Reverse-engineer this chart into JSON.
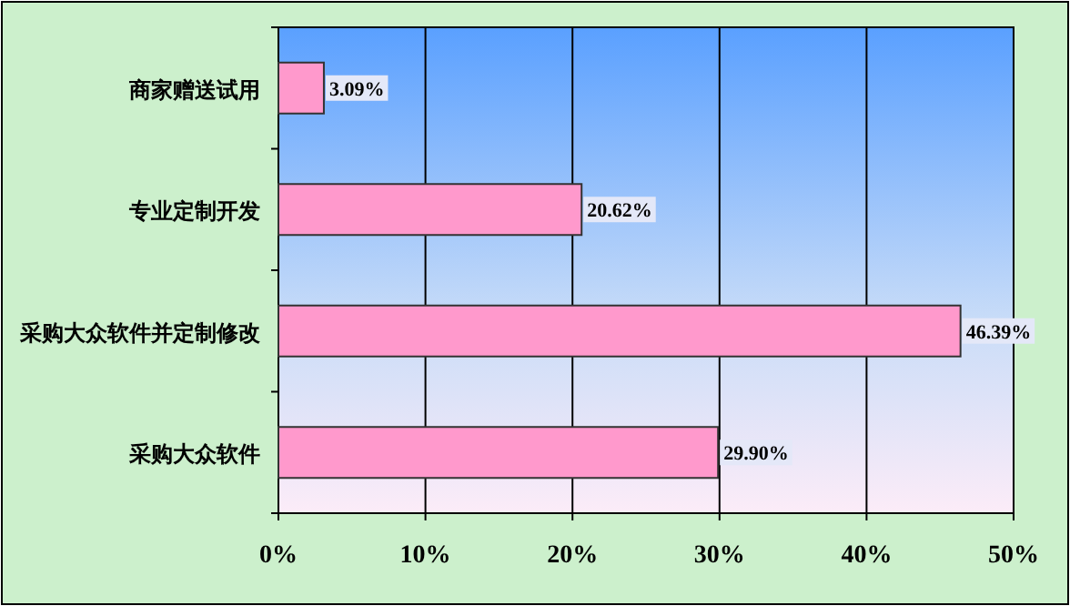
{
  "chart_data": {
    "type": "bar",
    "orientation": "horizontal",
    "categories": [
      "商家赠送试用",
      "专业定制开发",
      "采购大众软件并定制修改",
      "采购大众软件"
    ],
    "values": [
      3.09,
      20.62,
      46.39,
      29.9
    ],
    "value_labels": [
      "3.09%",
      "20.62%",
      "46.39%",
      "29.90%"
    ],
    "color": "#ff99cc",
    "xlim": [
      0,
      50
    ],
    "xticks": [
      {
        "value": 0,
        "label": "0%"
      },
      {
        "value": 10,
        "label": "10%"
      },
      {
        "value": 20,
        "label": "20%"
      },
      {
        "value": 30,
        "label": "30%"
      },
      {
        "value": 40,
        "label": "40%"
      },
      {
        "value": 50,
        "label": "50%"
      }
    ],
    "grid": "x"
  }
}
